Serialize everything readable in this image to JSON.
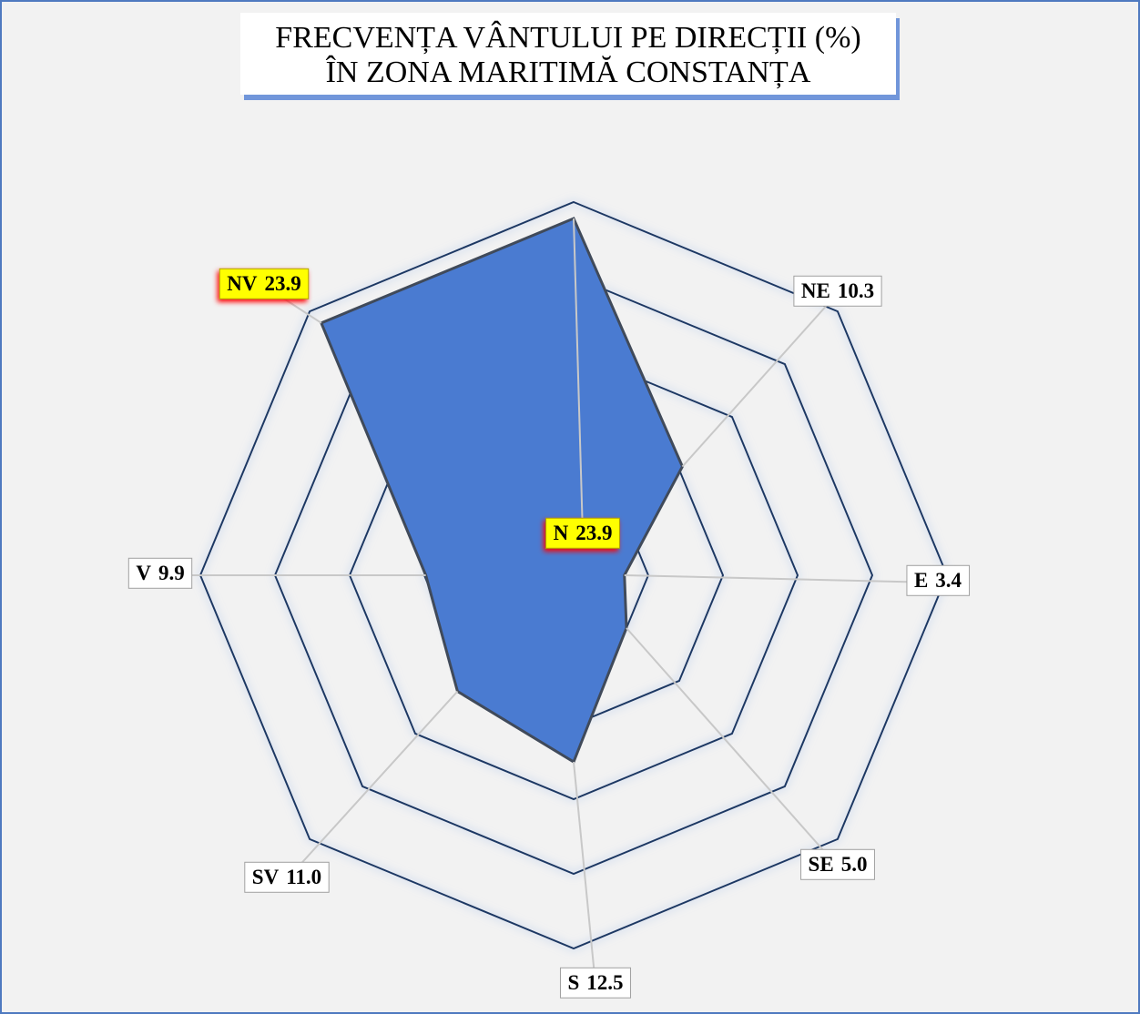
{
  "chart_data": {
    "type": "radar",
    "title": [
      "FRECVENȚA VÂNTULUI PE DIRECȚII (%)",
      "ÎN ZONA MARITIMĂ CONSTANȚA"
    ],
    "categories": [
      "N",
      "NE",
      "E",
      "SE",
      "S",
      "SV",
      "V",
      "NV"
    ],
    "values": [
      23.9,
      10.3,
      3.4,
      5.0,
      12.5,
      11.0,
      9.9,
      23.9
    ],
    "value_labels": [
      "23.9",
      "10.3",
      "3.4",
      "5.0",
      "12.5",
      "11.0",
      "9.9",
      "23.9"
    ],
    "color": "#4a7bd1",
    "ylim": [
      0,
      25
    ],
    "yticks": [
      5,
      10,
      15,
      20,
      25
    ],
    "grid": true
  }
}
